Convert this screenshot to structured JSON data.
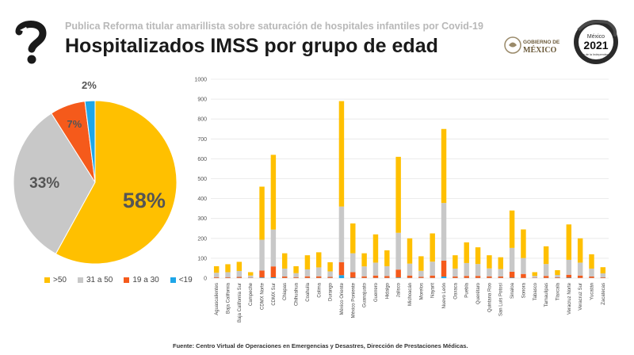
{
  "header": {
    "subtitle": "Publica Reforma titular amarillista sobre saturación de hospitales infantiles por Covid-19",
    "title": "Hospitalizados IMSS por grupo de edad",
    "gob_line1": "GOBIERNO DE",
    "gob_line2": "MÉXICO",
    "logo_year": "2021",
    "logo_text": "México",
    "logo_sub": "Año de la Independencia"
  },
  "colors": {
    "gt50": "#ffc000",
    "a31_50": "#c8c8c8",
    "a19_30": "#f55a1b",
    "lt19": "#1ea6e8"
  },
  "chart_data": [
    {
      "type": "pie",
      "categories": [
        ">50",
        "31 a 50",
        "19 a 30",
        "<19"
      ],
      "values": [
        58,
        33,
        7,
        2
      ],
      "labels": [
        "58%",
        "33%",
        "7%",
        "2%"
      ],
      "legend_position": "bottom"
    },
    {
      "type": "bar",
      "stacked": true,
      "ylim": [
        0,
        1000
      ],
      "yticks": [
        0,
        100,
        200,
        300,
        400,
        500,
        600,
        700,
        800,
        900,
        1000
      ],
      "grid": true,
      "categories": [
        "Aguascalientes",
        "Baja California",
        "Baja California Sur",
        "Campeche",
        "CDMX Norte",
        "CDMX Sur",
        "Chiapas",
        "Chihuahua",
        "Coahuila",
        "Colima",
        "Durango",
        "México Oriente",
        "México Poniente",
        "Guanajuato",
        "Guerrero",
        "Hidalgo",
        "Jalisco",
        "Michoacán",
        "Morelos",
        "Nayarit",
        "Nuevo León",
        "Oaxaca",
        "Puebla",
        "Querétaro",
        "Quintana Roo",
        "San Luis Potosí",
        "Sinaloa",
        "Sonora",
        "Tabasco",
        "Tamaulipas",
        "Tlaxcala",
        "Veracruz Norte",
        "Veracruz Sur",
        "Yucatán",
        "Zacatecas"
      ],
      "series": [
        {
          "name": "<19",
          "values": [
            1,
            1,
            1,
            1,
            3,
            4,
            1,
            1,
            1,
            1,
            1,
            15,
            2,
            1,
            1,
            1,
            3,
            1,
            1,
            1,
            8,
            1,
            1,
            1,
            1,
            1,
            2,
            1,
            1,
            1,
            1,
            2,
            1,
            1,
            1
          ]
        },
        {
          "name": "19 a 30",
          "values": [
            4,
            4,
            5,
            2,
            35,
            55,
            7,
            4,
            8,
            8,
            5,
            65,
            28,
            8,
            12,
            9,
            40,
            12,
            6,
            12,
            80,
            7,
            10,
            10,
            8,
            7,
            30,
            20,
            2,
            10,
            3,
            15,
            12,
            7,
            3
          ]
        },
        {
          "name": "31 a 50",
          "values": [
            22,
            25,
            30,
            10,
            155,
            185,
            40,
            20,
            35,
            45,
            28,
            280,
            95,
            50,
            65,
            50,
            185,
            60,
            30,
            70,
            290,
            40,
            65,
            60,
            40,
            38,
            120,
            80,
            8,
            60,
            12,
            75,
            65,
            40,
            20
          ]
        },
        {
          "name": ">50",
          "values": [
            33,
            40,
            46,
            17,
            267,
            376,
            77,
            35,
            71,
            76,
            46,
            530,
            150,
            66,
            142,
            80,
            382,
            127,
            73,
            142,
            372,
            67,
            104,
            84,
            66,
            59,
            188,
            144,
            19,
            89,
            24,
            178,
            122,
            72,
            31
          ]
        }
      ]
    }
  ],
  "footer": {
    "source": "Fuente: Centro Virtual de Operaciones en Emergencias y Desastres, Dirección de Prestaciones Médicas."
  }
}
